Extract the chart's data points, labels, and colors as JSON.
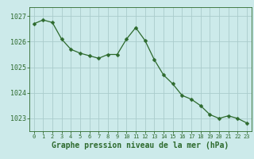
{
  "x": [
    0,
    1,
    2,
    3,
    4,
    5,
    6,
    7,
    8,
    9,
    10,
    11,
    12,
    13,
    14,
    15,
    16,
    17,
    18,
    19,
    20,
    21,
    22,
    23
  ],
  "y": [
    1026.7,
    1026.85,
    1026.75,
    1026.1,
    1025.7,
    1025.55,
    1025.45,
    1025.35,
    1025.5,
    1025.5,
    1026.1,
    1026.55,
    1026.05,
    1025.3,
    1024.7,
    1024.35,
    1023.9,
    1023.75,
    1023.5,
    1023.15,
    1023.0,
    1023.1,
    1023.0,
    1022.82
  ],
  "line_color": "#2d6a2d",
  "marker": "D",
  "marker_size": 2.5,
  "bg_color": "#cceaea",
  "grid_color": "#aacccc",
  "ylabel_ticks": [
    1023,
    1024,
    1025,
    1026,
    1027
  ],
  "xtick_labels": [
    "0",
    "1",
    "2",
    "3",
    "4",
    "5",
    "6",
    "7",
    "8",
    "9",
    "10",
    "11",
    "12",
    "13",
    "14",
    "15",
    "16",
    "17",
    "18",
    "19",
    "20",
    "21",
    "22",
    "23"
  ],
  "xlabel": "Graphe pression niveau de la mer (hPa)",
  "ylim": [
    1022.5,
    1027.35
  ],
  "xlim": [
    -0.5,
    23.5
  ],
  "tick_color": "#2d6a2d",
  "axis_color": "#2d6a2d",
  "ytick_fontsize": 6,
  "xtick_fontsize": 5,
  "xlabel_fontsize": 7
}
